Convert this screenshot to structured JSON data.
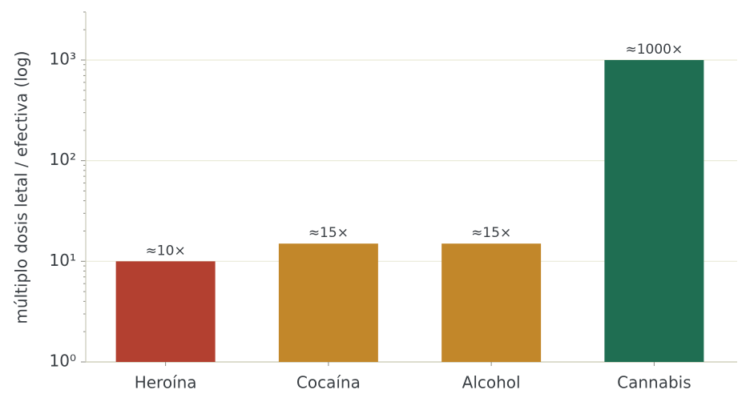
{
  "chart_data": {
    "type": "bar",
    "y_label": "múltiplo dosis letal / efectiva (log)",
    "categories": [
      "Heroína",
      "Cocaína",
      "Alcohol",
      "Cannabis"
    ],
    "values": [
      10,
      15,
      15,
      1000
    ],
    "value_labels": [
      "≈10×",
      "≈15×",
      "≈15×",
      "≈1000×"
    ],
    "colors": [
      "#b34030",
      "#c2872a",
      "#c2872a",
      "#1f6e52"
    ],
    "log_scale": true,
    "ylim": [
      1,
      3000
    ],
    "yticks": [
      {
        "value": 1,
        "label": "10⁰"
      },
      {
        "value": 10,
        "label": "10¹"
      },
      {
        "value": 100,
        "label": "10²"
      },
      {
        "value": 1000,
        "label": "10³"
      }
    ],
    "grid": true
  }
}
